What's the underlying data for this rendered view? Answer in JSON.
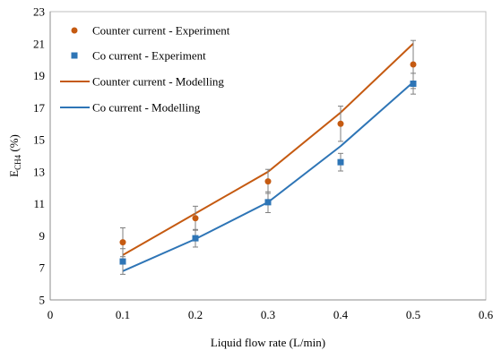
{
  "chart_data": {
    "type": "scatter",
    "xlabel": "Liquid flow rate (L/min)",
    "ylabel": "E",
    "ylabel_sub": "CH4",
    "ylabel_suffix": " (%)",
    "xlim": [
      0,
      0.6
    ],
    "ylim": [
      5,
      23
    ],
    "x_ticks": [
      "0",
      "0.1",
      "0.2",
      "0.3",
      "0.4",
      "0.5",
      "0.6"
    ],
    "y_ticks": [
      "5",
      "7",
      "9",
      "11",
      "13",
      "15",
      "17",
      "19",
      "21",
      "23"
    ],
    "x_tick_values": [
      0,
      0.1,
      0.2,
      0.3,
      0.4,
      0.5,
      0.6
    ],
    "y_tick_values": [
      5,
      7,
      9,
      11,
      13,
      15,
      17,
      19,
      21,
      23
    ],
    "grid": false,
    "legend_position": "top-left",
    "series": [
      {
        "name": "Counter current - Experiment",
        "kind": "marker-circle",
        "color": "#C55A11",
        "x": [
          0.1,
          0.2,
          0.3,
          0.4,
          0.5
        ],
        "y": [
          8.6,
          10.1,
          12.4,
          16.0,
          19.7
        ],
        "error": [
          0.9,
          0.75,
          0.75,
          1.1,
          1.5
        ]
      },
      {
        "name": "Co current - Experiment",
        "kind": "marker-square",
        "color": "#2E75B6",
        "x": [
          0.1,
          0.2,
          0.3,
          0.4,
          0.5
        ],
        "y": [
          7.4,
          8.85,
          11.1,
          13.6,
          18.5
        ],
        "error": [
          0.8,
          0.55,
          0.65,
          0.55,
          0.65
        ]
      },
      {
        "name": "Counter current - Modelling",
        "kind": "line",
        "color": "#C55A11",
        "x": [
          0.1,
          0.2,
          0.3,
          0.4,
          0.5
        ],
        "y": [
          7.8,
          10.4,
          13.0,
          16.7,
          21.0
        ]
      },
      {
        "name": "Co current - Modelling",
        "kind": "line",
        "color": "#2E75B6",
        "x": [
          0.1,
          0.2,
          0.3,
          0.4,
          0.5
        ],
        "y": [
          6.8,
          8.8,
          11.1,
          14.6,
          18.6
        ]
      }
    ]
  }
}
